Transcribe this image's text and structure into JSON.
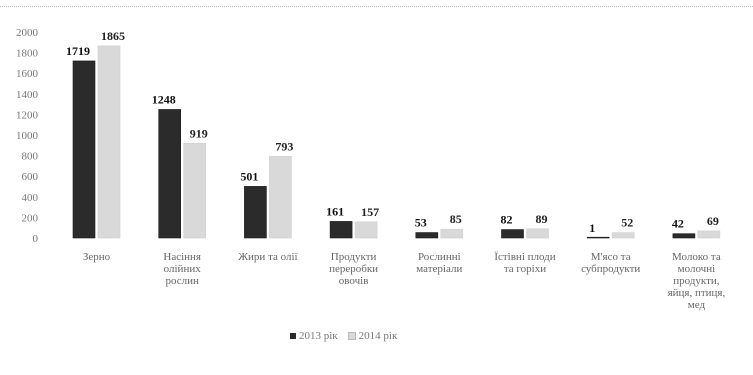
{
  "chart_data": {
    "type": "bar",
    "categories": [
      "Зерно",
      "Насіння олійних рослин",
      "Жири та олії",
      "Продукти переробки овочів",
      "Рослинні матеріали",
      "Їстівні плоди та горіхи",
      "М'ясо та субпродукти",
      "Молоко та молочні продукти, яйця, мед"
    ],
    "category_lines": [
      [
        "Зерно"
      ],
      [
        "Насіння",
        "олійних",
        "рослин"
      ],
      [
        "Жири та олії"
      ],
      [
        "Продукти",
        "переробки",
        "овочів"
      ],
      [
        "Рослинні",
        "матеріали"
      ],
      [
        "Їстівні плоди",
        "та горіхи"
      ],
      [
        "М'ясо та",
        "субпродукти"
      ],
      [
        "Молоко та",
        "молочні",
        "продукти,",
        "яйця, птиця,",
        "мед"
      ]
    ],
    "series": [
      {
        "name": "2013 рік",
        "values": [
          1719,
          1248,
          501,
          161,
          53,
          82,
          1,
          42
        ]
      },
      {
        "name": "2014 рік",
        "values": [
          1865,
          919,
          793,
          157,
          85,
          89,
          52,
          69
        ]
      }
    ],
    "series_labels": [
      [
        "1719",
        "1248",
        "501",
        "161",
        "53",
        "82",
        "1",
        "42"
      ],
      [
        "1865",
        "919",
        "793",
        "157",
        "85",
        "89",
        "52",
        "69"
      ]
    ],
    "colors": [
      "#2b2b2b",
      "#d9d9d9"
    ],
    "yticks": [
      "0",
      "200",
      "400",
      "600",
      "800",
      "1000",
      "1200",
      "1400",
      "1600",
      "1800",
      "2000"
    ],
    "ylim": [
      0,
      2000
    ],
    "grid": false,
    "legend_position": "bottom",
    "title": "",
    "xlabel": "",
    "ylabel": ""
  }
}
